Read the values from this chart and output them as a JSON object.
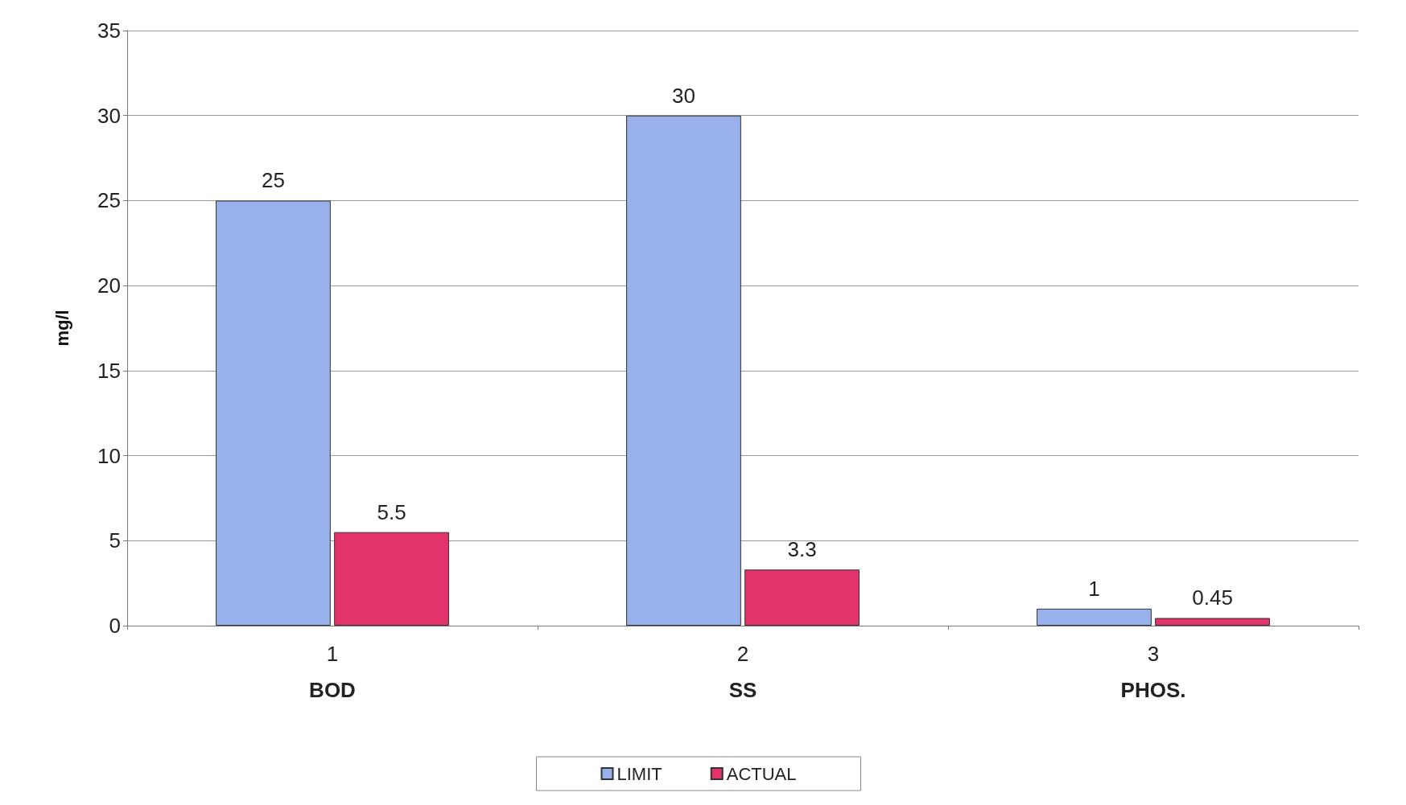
{
  "chart_data": {
    "type": "bar",
    "ylabel": "mg/l",
    "categories": [
      "1",
      "2",
      "3"
    ],
    "series": [
      {
        "name": "LIMIT",
        "color": "#99b1ea",
        "values": [
          25,
          30,
          1
        ]
      },
      {
        "name": "ACTUAL",
        "color": "#e2336b",
        "values": [
          5.5,
          3.3,
          0.45
        ]
      }
    ],
    "annotations": [
      "BOD",
      "SS",
      "PHOS."
    ],
    "ylim": [
      0,
      35
    ],
    "yticks": [
      0,
      5,
      10,
      15,
      20,
      25,
      30,
      35
    ],
    "grid": "y",
    "legend": "bottom",
    "data_labels": true
  }
}
